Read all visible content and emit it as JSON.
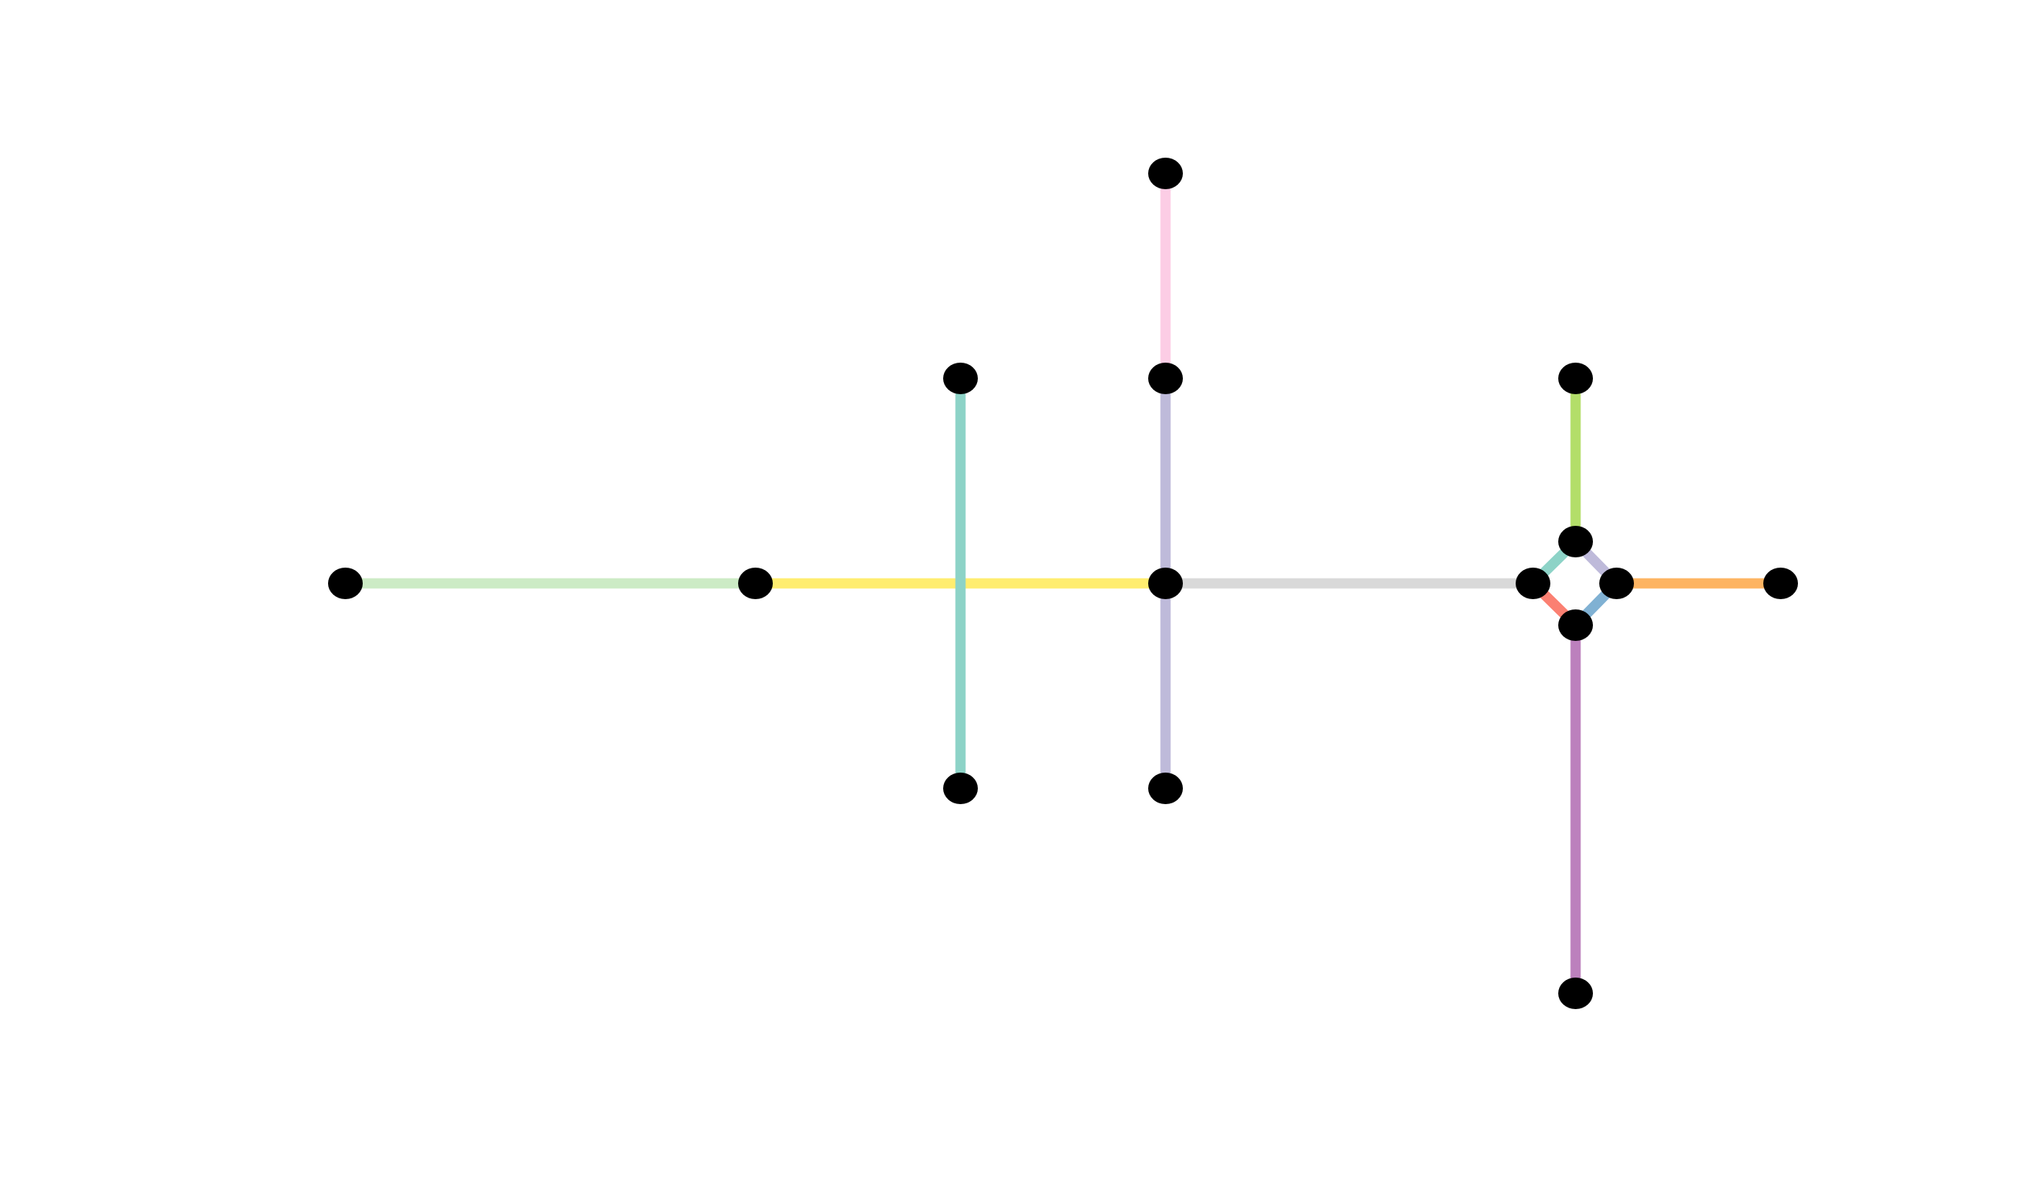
{
  "diagram": {
    "type": "network",
    "node_color": "#000000",
    "nodes": [
      {
        "id": "n1"
      },
      {
        "id": "n2"
      },
      {
        "id": "n3"
      },
      {
        "id": "n4"
      },
      {
        "id": "n5"
      },
      {
        "id": "n6"
      },
      {
        "id": "n7"
      },
      {
        "id": "n8"
      },
      {
        "id": "n9"
      },
      {
        "id": "n10"
      },
      {
        "id": "n11"
      },
      {
        "id": "n12"
      },
      {
        "id": "n13"
      },
      {
        "id": "n14"
      },
      {
        "id": "n15"
      },
      {
        "id": "n16"
      }
    ],
    "edges": [
      {
        "from": "n1",
        "to": "n2",
        "color": "#ccebc5"
      },
      {
        "from": "n2",
        "to": "n3",
        "color": "#ffed6f"
      },
      {
        "from": "n4",
        "to": "n5",
        "color": "#8dd3c7"
      },
      {
        "from": "n6",
        "to": "n7",
        "color": "#fccde5"
      },
      {
        "from": "n7",
        "to": "n3",
        "color": "#bebada"
      },
      {
        "from": "n3",
        "to": "n8",
        "color": "#bebada"
      },
      {
        "from": "n3",
        "to": "n9",
        "color": "#d9d9d9"
      },
      {
        "from": "n9",
        "to": "n10",
        "color": "#8dd3c7"
      },
      {
        "from": "n10",
        "to": "n11",
        "color": "#bebada"
      },
      {
        "from": "n9",
        "to": "n12",
        "color": "#fb8072"
      },
      {
        "from": "n12",
        "to": "n11",
        "color": "#80b1d3"
      },
      {
        "from": "n13",
        "to": "n10",
        "color": "#b3de69"
      },
      {
        "from": "n11",
        "to": "n14",
        "color": "#fdb462"
      },
      {
        "from": "n12",
        "to": "n15",
        "color": "#bc80bd"
      }
    ]
  }
}
